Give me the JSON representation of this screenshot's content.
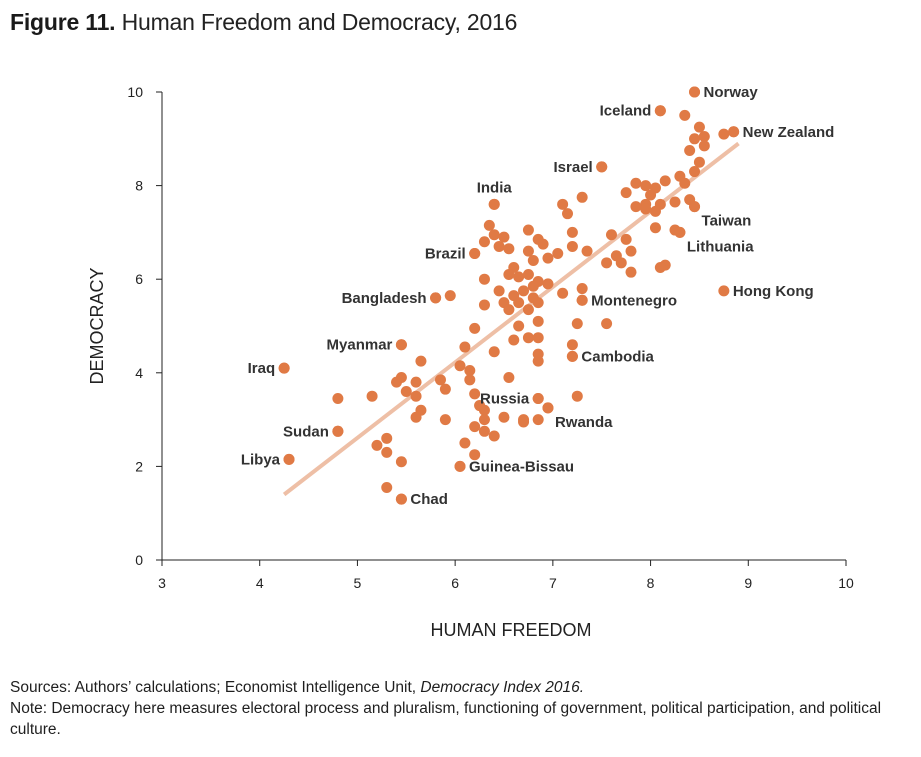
{
  "header": {
    "figure_label": "Figure 11.",
    "title_text": "Human Freedom and Democracy, 2016"
  },
  "footer": {
    "sources_prefix": "Sources: Authors’ calculations; Economist Intelligence Unit, ",
    "sources_italic": "Democracy Index 2016.",
    "note": "Note: Democracy here measures electoral process and pluralism, functioning of government, political participation, and political culture."
  },
  "colors": {
    "point": "#e07a45",
    "trend": "#eebfa6",
    "axis": "#222222"
  },
  "chart_data": {
    "type": "scatter",
    "title": "Human Freedom and Democracy, 2016",
    "xlabel": "HUMAN FREEDOM",
    "ylabel": "DEMOCRACY",
    "xlim": [
      3,
      10
    ],
    "ylim": [
      0,
      10
    ],
    "xticks": [
      3,
      4,
      5,
      6,
      7,
      8,
      9,
      10
    ],
    "yticks": [
      0,
      2,
      4,
      6,
      8,
      10
    ],
    "grid": false,
    "trendline": {
      "x": [
        4.25,
        8.9
      ],
      "y": [
        1.4,
        8.9
      ]
    },
    "labeled_points": [
      {
        "label": "Norway",
        "x": 8.45,
        "y": 10.0,
        "anchor": "right"
      },
      {
        "label": "Iceland",
        "x": 8.1,
        "y": 9.6,
        "anchor": "left"
      },
      {
        "label": "New Zealand",
        "x": 8.85,
        "y": 9.15,
        "anchor": "right"
      },
      {
        "label": "Israel",
        "x": 7.5,
        "y": 8.4,
        "anchor": "left"
      },
      {
        "label": "India",
        "x": 6.4,
        "y": 7.6,
        "anchor": "above"
      },
      {
        "label": "Taiwan",
        "x": 8.45,
        "y": 7.55,
        "anchor": "right-below"
      },
      {
        "label": "Lithuania",
        "x": 8.3,
        "y": 7.0,
        "anchor": "right-below"
      },
      {
        "label": "Brazil",
        "x": 6.2,
        "y": 6.55,
        "anchor": "left"
      },
      {
        "label": "Hong Kong",
        "x": 8.75,
        "y": 5.75,
        "anchor": "right"
      },
      {
        "label": "Bangladesh",
        "x": 5.8,
        "y": 5.6,
        "anchor": "left"
      },
      {
        "label": "Montenegro",
        "x": 7.3,
        "y": 5.55,
        "anchor": "right"
      },
      {
        "label": "Myanmar",
        "x": 5.45,
        "y": 4.6,
        "anchor": "left"
      },
      {
        "label": "Cambodia",
        "x": 7.2,
        "y": 4.35,
        "anchor": "right"
      },
      {
        "label": "Iraq",
        "x": 4.25,
        "y": 4.1,
        "anchor": "left"
      },
      {
        "label": "Russia",
        "x": 6.85,
        "y": 3.45,
        "anchor": "left"
      },
      {
        "label": "Rwanda",
        "x": 6.95,
        "y": 3.25,
        "anchor": "right-below"
      },
      {
        "label": "Sudan",
        "x": 4.8,
        "y": 2.75,
        "anchor": "left"
      },
      {
        "label": "Libya",
        "x": 4.3,
        "y": 2.15,
        "anchor": "left"
      },
      {
        "label": "Guinea-Bissau",
        "x": 6.05,
        "y": 2.0,
        "anchor": "right"
      },
      {
        "label": "Chad",
        "x": 5.45,
        "y": 1.3,
        "anchor": "right"
      }
    ],
    "points": [
      [
        8.45,
        10.0
      ],
      [
        8.1,
        9.6
      ],
      [
        8.85,
        9.15
      ],
      [
        8.75,
        9.1
      ],
      [
        8.35,
        9.5
      ],
      [
        8.5,
        9.25
      ],
      [
        8.55,
        9.05
      ],
      [
        8.45,
        9.0
      ],
      [
        8.55,
        8.85
      ],
      [
        8.4,
        8.75
      ],
      [
        8.5,
        8.5
      ],
      [
        8.45,
        8.3
      ],
      [
        8.3,
        8.2
      ],
      [
        8.35,
        8.05
      ],
      [
        8.15,
        8.1
      ],
      [
        8.05,
        7.95
      ],
      [
        7.95,
        8.0
      ],
      [
        7.85,
        8.05
      ],
      [
        8.0,
        7.8
      ],
      [
        7.75,
        7.85
      ],
      [
        7.95,
        7.6
      ],
      [
        8.1,
        7.6
      ],
      [
        8.25,
        7.65
      ],
      [
        8.4,
        7.7
      ],
      [
        8.45,
        7.55
      ],
      [
        7.85,
        7.55
      ],
      [
        8.05,
        7.45
      ],
      [
        7.95,
        7.5
      ],
      [
        7.5,
        8.4
      ],
      [
        7.3,
        7.75
      ],
      [
        7.1,
        7.6
      ],
      [
        7.15,
        7.4
      ],
      [
        7.2,
        7.0
      ],
      [
        7.2,
        6.7
      ],
      [
        7.35,
        6.6
      ],
      [
        7.6,
        6.95
      ],
      [
        7.75,
        6.85
      ],
      [
        7.8,
        6.6
      ],
      [
        7.65,
        6.5
      ],
      [
        7.55,
        6.35
      ],
      [
        7.7,
        6.35
      ],
      [
        7.8,
        6.15
      ],
      [
        8.05,
        7.1
      ],
      [
        8.25,
        7.05
      ],
      [
        8.3,
        7.0
      ],
      [
        8.15,
        6.3
      ],
      [
        8.1,
        6.25
      ],
      [
        6.4,
        7.6
      ],
      [
        6.35,
        7.15
      ],
      [
        6.4,
        6.95
      ],
      [
        6.5,
        6.9
      ],
      [
        6.3,
        6.8
      ],
      [
        6.45,
        6.7
      ],
      [
        6.55,
        6.65
      ],
      [
        6.2,
        6.55
      ],
      [
        6.75,
        7.05
      ],
      [
        6.85,
        6.85
      ],
      [
        6.9,
        6.75
      ],
      [
        6.75,
        6.6
      ],
      [
        6.95,
        6.45
      ],
      [
        7.05,
        6.55
      ],
      [
        6.8,
        6.4
      ],
      [
        6.6,
        6.25
      ],
      [
        6.75,
        6.1
      ],
      [
        6.65,
        6.05
      ],
      [
        6.55,
        6.1
      ],
      [
        6.3,
        6.0
      ],
      [
        6.85,
        5.95
      ],
      [
        6.95,
        5.9
      ],
      [
        6.8,
        5.85
      ],
      [
        6.7,
        5.75
      ],
      [
        6.6,
        5.65
      ],
      [
        6.8,
        5.6
      ],
      [
        6.65,
        5.5
      ],
      [
        6.5,
        5.5
      ],
      [
        6.55,
        5.35
      ],
      [
        6.3,
        5.45
      ],
      [
        6.45,
        5.75
      ],
      [
        6.85,
        5.5
      ],
      [
        6.75,
        5.35
      ],
      [
        6.85,
        5.1
      ],
      [
        6.65,
        5.0
      ],
      [
        6.75,
        4.75
      ],
      [
        6.85,
        4.75
      ],
      [
        6.6,
        4.7
      ],
      [
        7.1,
        5.7
      ],
      [
        7.3,
        5.8
      ],
      [
        7.3,
        5.55
      ],
      [
        7.25,
        5.05
      ],
      [
        7.55,
        5.05
      ],
      [
        7.2,
        4.6
      ],
      [
        7.2,
        4.35
      ],
      [
        6.85,
        4.4
      ],
      [
        6.85,
        4.25
      ],
      [
        6.4,
        4.45
      ],
      [
        6.55,
        3.9
      ],
      [
        6.2,
        4.95
      ],
      [
        6.1,
        4.55
      ],
      [
        6.05,
        4.15
      ],
      [
        6.15,
        4.05
      ],
      [
        6.15,
        3.85
      ],
      [
        5.85,
        3.85
      ],
      [
        5.9,
        3.65
      ],
      [
        5.8,
        5.6
      ],
      [
        5.95,
        5.65
      ],
      [
        5.45,
        4.6
      ],
      [
        5.65,
        4.25
      ],
      [
        5.45,
        3.9
      ],
      [
        5.6,
        3.8
      ],
      [
        5.4,
        3.8
      ],
      [
        5.5,
        3.6
      ],
      [
        5.6,
        3.5
      ],
      [
        5.65,
        3.2
      ],
      [
        5.6,
        3.05
      ],
      [
        5.9,
        3.0
      ],
      [
        6.2,
        3.55
      ],
      [
        6.25,
        3.3
      ],
      [
        6.3,
        3.2
      ],
      [
        6.3,
        3.0
      ],
      [
        6.2,
        2.85
      ],
      [
        6.3,
        2.75
      ],
      [
        6.4,
        2.65
      ],
      [
        6.1,
        2.5
      ],
      [
        6.2,
        2.25
      ],
      [
        6.05,
        2.0
      ],
      [
        6.5,
        3.05
      ],
      [
        6.7,
        3.0
      ],
      [
        6.85,
        3.0
      ],
      [
        6.7,
        2.95
      ],
      [
        6.85,
        3.45
      ],
      [
        6.95,
        3.25
      ],
      [
        7.25,
        3.5
      ],
      [
        4.25,
        4.1
      ],
      [
        4.8,
        3.45
      ],
      [
        5.15,
        3.5
      ],
      [
        4.8,
        2.75
      ],
      [
        5.2,
        2.45
      ],
      [
        5.3,
        2.6
      ],
      [
        5.3,
        2.3
      ],
      [
        5.45,
        2.1
      ],
      [
        4.3,
        2.15
      ],
      [
        5.3,
        1.55
      ],
      [
        5.45,
        1.3
      ]
    ]
  }
}
